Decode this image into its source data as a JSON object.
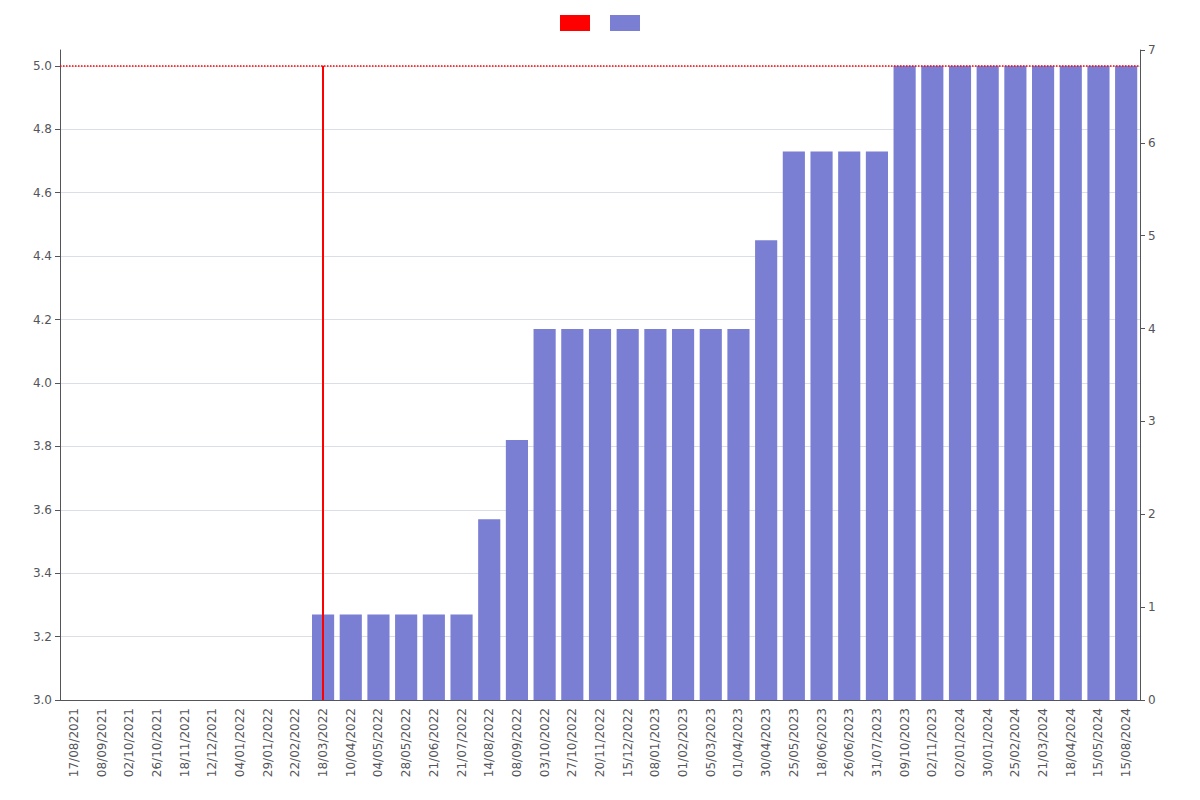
{
  "chart_data": {
    "type": "bar",
    "categories": [
      "17/08/2021",
      "08/09/2021",
      "02/10/2021",
      "26/10/2021",
      "18/11/2021",
      "12/12/2021",
      "04/01/2022",
      "29/01/2022",
      "22/02/2022",
      "18/03/2022",
      "10/04/2022",
      "04/05/2022",
      "28/05/2022",
      "21/06/2022",
      "21/07/2022",
      "14/08/2022",
      "08/09/2022",
      "03/10/2022",
      "27/10/2022",
      "20/11/2022",
      "15/12/2022",
      "08/01/2023",
      "01/02/2023",
      "05/03/2023",
      "01/04/2023",
      "30/04/2023",
      "25/05/2023",
      "18/06/2023",
      "26/06/2023",
      "31/07/2023",
      "09/10/2023",
      "02/11/2023",
      "02/01/2024",
      "30/01/2024",
      "25/02/2024",
      "21/03/2024",
      "18/04/2024",
      "15/05/2024",
      "15/08/2024"
    ],
    "values": [
      null,
      null,
      null,
      null,
      null,
      null,
      null,
      null,
      null,
      3.27,
      3.27,
      3.27,
      3.27,
      3.27,
      3.27,
      3.57,
      3.82,
      4.17,
      4.17,
      4.17,
      4.17,
      4.17,
      4.17,
      4.17,
      4.17,
      4.45,
      4.73,
      4.73,
      4.73,
      4.73,
      5.0,
      5.0,
      5.0,
      5.0,
      5.0,
      5.0,
      5.0,
      5.0,
      5.0
    ],
    "color": "#7B7FD4",
    "hlines": [
      {
        "y": 5.0,
        "color": "#FF0000",
        "line_style": "dotted"
      }
    ],
    "vlines": [
      {
        "x": "18/03/2022",
        "y_range": [
          3.0,
          5.0
        ],
        "color": "#FF0000",
        "line_style": "solid"
      }
    ],
    "ylim": [
      3.0,
      5.05
    ],
    "yticks": [
      {
        "value": 3.0,
        "label": "3.0"
      },
      3.2,
      3.4,
      3.6,
      3.8,
      {
        "value": 4.0,
        "label": "4.0"
      },
      4.2,
      4.4,
      4.6,
      4.8,
      {
        "value": 5.0,
        "label": "5.0"
      }
    ],
    "y2lim": [
      0,
      7
    ],
    "y2ticks": [
      0,
      1,
      2,
      3,
      4,
      5,
      6,
      7
    ],
    "grid": true,
    "legend": "top"
  }
}
